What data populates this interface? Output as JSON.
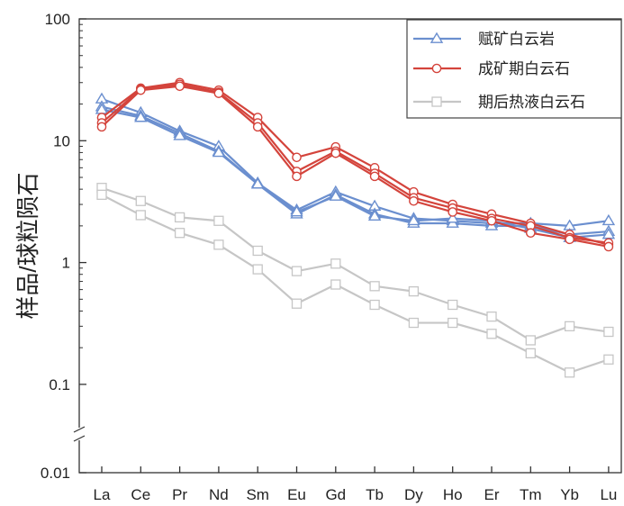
{
  "chart_data": {
    "type": "line",
    "y_scale": "log",
    "ylim": [
      0.01,
      100
    ],
    "ylabel": "样品/球粒陨石",
    "y_ticks": [
      "0.01",
      "0.1",
      "1",
      "10",
      "100"
    ],
    "y_tick_values": [
      0.01,
      0.1,
      1,
      10,
      100
    ],
    "y_axis_break": true,
    "grid": false,
    "legend_position": "top-right",
    "categories": [
      "La",
      "Ce",
      "Pr",
      "Nd",
      "Sm",
      "Eu",
      "Gd",
      "Tb",
      "Dy",
      "Ho",
      "Er",
      "Tm",
      "Yb",
      "Lu"
    ],
    "groups": [
      {
        "name": "赋矿白云岩",
        "color": "#6b8fcf",
        "marker": "triangle",
        "lines": [
          [
            22,
            17,
            12,
            9,
            4.5,
            2.7,
            3.8,
            2.9,
            2.3,
            2.2,
            2.1,
            2.1,
            2.0,
            2.2
          ],
          [
            19,
            16,
            11.5,
            8.2,
            4.4,
            2.5,
            3.6,
            2.5,
            2.1,
            2.1,
            2.0,
            2.0,
            1.7,
            1.8
          ],
          [
            18,
            15.5,
            11,
            8,
            4.4,
            2.6,
            3.5,
            2.4,
            2.2,
            2.3,
            2.2,
            1.9,
            1.6,
            1.7
          ]
        ]
      },
      {
        "name": "成矿期白云石",
        "color": "#d4443c",
        "marker": "circle",
        "lines": [
          [
            15.5,
            27,
            30,
            26,
            15.5,
            7.3,
            8.9,
            6,
            3.8,
            3,
            2.5,
            2.1,
            1.7,
            1.4
          ],
          [
            14,
            26.5,
            29,
            25,
            14,
            5.6,
            8.2,
            5.4,
            3.4,
            2.8,
            2.3,
            2.0,
            1.6,
            1.45
          ],
          [
            13,
            26,
            28,
            24.5,
            13,
            5.1,
            7.9,
            5.1,
            3.2,
            2.6,
            2.2,
            1.75,
            1.55,
            1.35
          ]
        ]
      },
      {
        "name": "期后热液白云石",
        "color": "#c6c6c6",
        "marker": "square",
        "lines": [
          [
            4.1,
            3.2,
            2.35,
            2.2,
            1.25,
            0.85,
            0.98,
            0.64,
            0.58,
            0.45,
            0.36,
            0.23,
            0.3,
            0.27
          ],
          [
            3.6,
            2.45,
            1.75,
            1.4,
            0.88,
            0.46,
            0.66,
            0.45,
            0.32,
            0.32,
            0.26,
            0.18,
            0.125,
            0.16
          ]
        ]
      }
    ]
  }
}
